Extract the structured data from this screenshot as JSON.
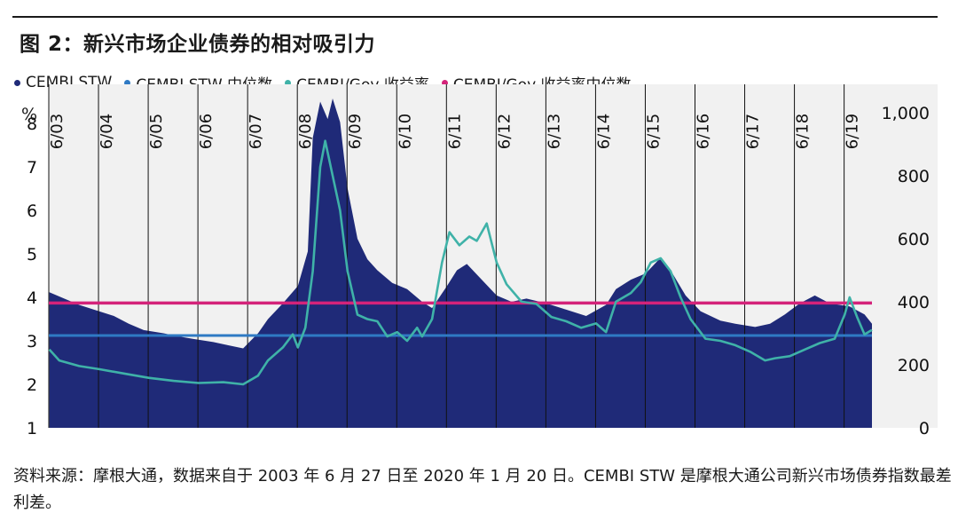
{
  "title": "图 2：新兴市场企业债券的相对吸引力",
  "legend": [
    {
      "label": "CEMBI STW",
      "color": "#1f2a78"
    },
    {
      "label": "CEMBI STW 中位数",
      "color": "#2f7ac4"
    },
    {
      "label": "CEMBI/Gov 收益率",
      "color": "#3fb2a8"
    },
    {
      "label": "CEMBI/Gov 收益率中位数",
      "color": "#d4237a"
    }
  ],
  "axis": {
    "left_unit": "%",
    "right_unit": "%",
    "left_ticks": [
      "8",
      "7",
      "6",
      "5",
      "4",
      "3",
      "2",
      "1"
    ],
    "right_ticks": [
      "1,000",
      "800",
      "600",
      "400",
      "200",
      "0"
    ],
    "date_labels": [
      "6/03",
      "6/04",
      "6/05",
      "6/06",
      "6/07",
      "6/08",
      "6/09",
      "6/10",
      "6/11",
      "6/12",
      "6/13",
      "6/14",
      "6/15",
      "6/16",
      "6/17",
      "6/18",
      "6/19"
    ]
  },
  "source": "资料来源：摩根大通，数据来自于 2003 年 6 月 27 日至 2020 年 1 月 20 日。CEMBI STW 是摩根大通公司新兴市场债券指数最差利差。",
  "chart_data": {
    "type": "area",
    "title": "图 2：新兴市场企业债券的相对吸引力",
    "x_range": [
      2003.49,
      2020.05
    ],
    "left_ylim": [
      1,
      8.9
    ],
    "right_ylim": [
      0,
      1090
    ],
    "left_ylabel": "%",
    "right_ylabel": "%",
    "series": [
      {
        "name": "CEMBI STW",
        "kind": "area",
        "axis": "right",
        "color": "#1f2a78",
        "points": [
          [
            2003.5,
            430
          ],
          [
            2003.8,
            410
          ],
          [
            2004.1,
            390
          ],
          [
            2004.4,
            375
          ],
          [
            2004.8,
            355
          ],
          [
            2005.1,
            330
          ],
          [
            2005.4,
            310
          ],
          [
            2005.8,
            300
          ],
          [
            2006.1,
            290
          ],
          [
            2006.4,
            282
          ],
          [
            2006.8,
            272
          ],
          [
            2007.1,
            262
          ],
          [
            2007.4,
            252
          ],
          [
            2007.7,
            300
          ],
          [
            2007.9,
            345
          ],
          [
            2008.2,
            395
          ],
          [
            2008.5,
            450
          ],
          [
            2008.7,
            560
          ],
          [
            2008.8,
            920
          ],
          [
            2008.95,
            1035
          ],
          [
            2009.1,
            980
          ],
          [
            2009.2,
            1045
          ],
          [
            2009.35,
            970
          ],
          [
            2009.5,
            760
          ],
          [
            2009.7,
            600
          ],
          [
            2009.9,
            535
          ],
          [
            2010.1,
            500
          ],
          [
            2010.4,
            460
          ],
          [
            2010.7,
            440
          ],
          [
            2011.0,
            400
          ],
          [
            2011.2,
            380
          ],
          [
            2011.5,
            450
          ],
          [
            2011.7,
            500
          ],
          [
            2011.9,
            520
          ],
          [
            2012.2,
            470
          ],
          [
            2012.5,
            420
          ],
          [
            2012.8,
            400
          ],
          [
            2013.1,
            410
          ],
          [
            2013.5,
            395
          ],
          [
            2013.9,
            375
          ],
          [
            2014.3,
            355
          ],
          [
            2014.7,
            390
          ],
          [
            2014.9,
            440
          ],
          [
            2015.2,
            470
          ],
          [
            2015.5,
            490
          ],
          [
            2015.8,
            540
          ],
          [
            2016.0,
            500
          ],
          [
            2016.3,
            420
          ],
          [
            2016.6,
            370
          ],
          [
            2017.0,
            340
          ],
          [
            2017.3,
            330
          ],
          [
            2017.7,
            320
          ],
          [
            2018.0,
            330
          ],
          [
            2018.3,
            360
          ],
          [
            2018.6,
            395
          ],
          [
            2018.9,
            420
          ],
          [
            2019.2,
            395
          ],
          [
            2019.6,
            385
          ],
          [
            2019.9,
            360
          ],
          [
            2020.05,
            330
          ]
        ]
      },
      {
        "name": "CEMBI STW 中位数",
        "kind": "horizontal",
        "axis": "right",
        "color": "#2f7ac4",
        "value": 293
      },
      {
        "name": "CEMBI/Gov 收益率",
        "kind": "line",
        "axis": "left",
        "color": "#3fb2a8",
        "points": [
          [
            2003.5,
            2.8
          ],
          [
            2003.7,
            2.55
          ],
          [
            2004.1,
            2.42
          ],
          [
            2004.5,
            2.35
          ],
          [
            2005.0,
            2.25
          ],
          [
            2005.5,
            2.15
          ],
          [
            2006.0,
            2.08
          ],
          [
            2006.5,
            2.03
          ],
          [
            2007.0,
            2.05
          ],
          [
            2007.4,
            2.0
          ],
          [
            2007.7,
            2.2
          ],
          [
            2007.9,
            2.55
          ],
          [
            2008.2,
            2.85
          ],
          [
            2008.4,
            3.15
          ],
          [
            2008.5,
            2.85
          ],
          [
            2008.65,
            3.3
          ],
          [
            2008.8,
            4.6
          ],
          [
            2008.95,
            7.0
          ],
          [
            2009.05,
            7.6
          ],
          [
            2009.2,
            6.8
          ],
          [
            2009.35,
            6.0
          ],
          [
            2009.5,
            4.6
          ],
          [
            2009.7,
            3.6
          ],
          [
            2009.9,
            3.5
          ],
          [
            2010.1,
            3.45
          ],
          [
            2010.3,
            3.1
          ],
          [
            2010.5,
            3.2
          ],
          [
            2010.7,
            3.0
          ],
          [
            2010.9,
            3.3
          ],
          [
            2011.0,
            3.1
          ],
          [
            2011.2,
            3.5
          ],
          [
            2011.4,
            4.8
          ],
          [
            2011.55,
            5.5
          ],
          [
            2011.75,
            5.2
          ],
          [
            2011.95,
            5.4
          ],
          [
            2012.1,
            5.3
          ],
          [
            2012.3,
            5.7
          ],
          [
            2012.5,
            4.8
          ],
          [
            2012.7,
            4.3
          ],
          [
            2013.0,
            3.9
          ],
          [
            2013.3,
            3.85
          ],
          [
            2013.6,
            3.55
          ],
          [
            2013.9,
            3.45
          ],
          [
            2014.2,
            3.3
          ],
          [
            2014.5,
            3.4
          ],
          [
            2014.7,
            3.2
          ],
          [
            2014.9,
            3.9
          ],
          [
            2015.2,
            4.1
          ],
          [
            2015.4,
            4.35
          ],
          [
            2015.6,
            4.8
          ],
          [
            2015.8,
            4.9
          ],
          [
            2016.0,
            4.6
          ],
          [
            2016.2,
            4.0
          ],
          [
            2016.4,
            3.5
          ],
          [
            2016.7,
            3.05
          ],
          [
            2017.0,
            3.0
          ],
          [
            2017.3,
            2.9
          ],
          [
            2017.6,
            2.75
          ],
          [
            2017.9,
            2.55
          ],
          [
            2018.1,
            2.6
          ],
          [
            2018.4,
            2.65
          ],
          [
            2018.7,
            2.8
          ],
          [
            2019.0,
            2.95
          ],
          [
            2019.3,
            3.05
          ],
          [
            2019.5,
            3.6
          ],
          [
            2019.6,
            4.0
          ],
          [
            2019.75,
            3.55
          ],
          [
            2019.9,
            3.15
          ],
          [
            2020.05,
            3.25
          ]
        ]
      },
      {
        "name": "CEMBI/Gov 收益率中位数",
        "kind": "horizontal",
        "axis": "left",
        "color": "#d4237a",
        "value": 3.87
      }
    ],
    "vertical_markers": [
      2003.49,
      2004.49,
      2005.49,
      2006.49,
      2007.49,
      2008.49,
      2009.49,
      2010.49,
      2011.49,
      2012.49,
      2013.49,
      2014.49,
      2015.49,
      2016.49,
      2017.49,
      2018.49,
      2019.49
    ]
  }
}
